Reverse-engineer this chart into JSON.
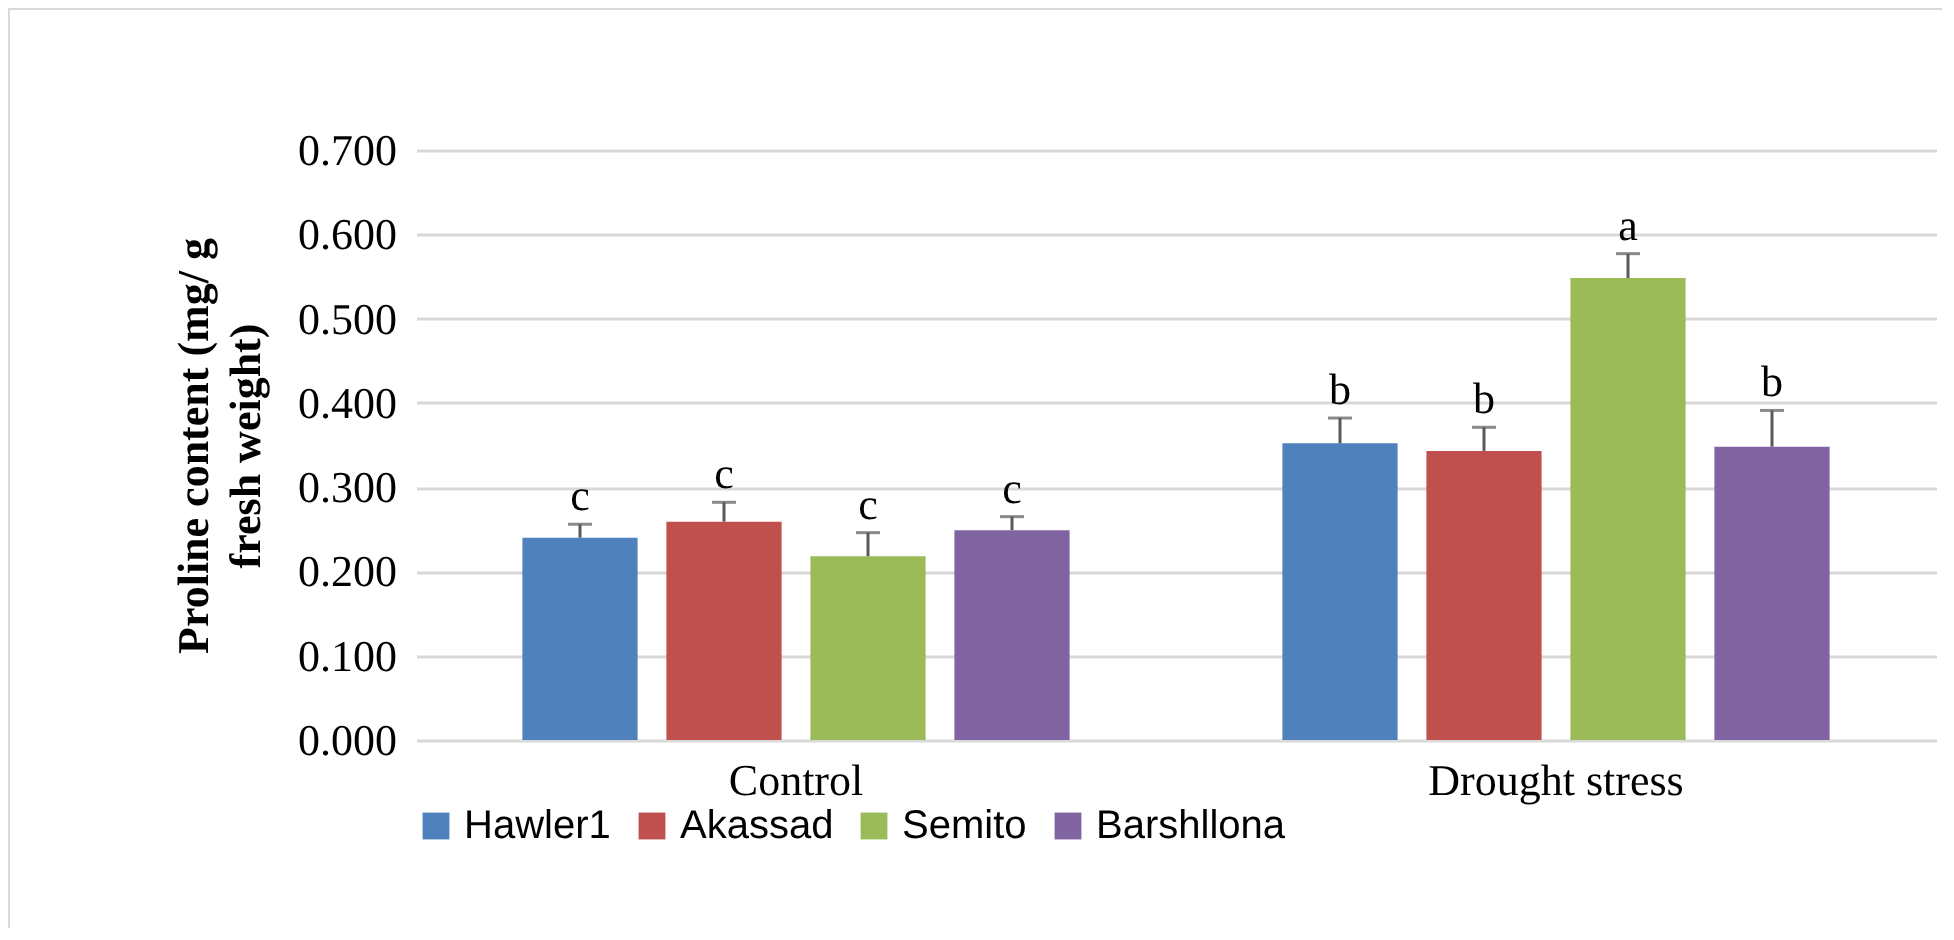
{
  "chart_data": {
    "type": "bar",
    "ylabel": "Proline content (mg/ g fresh weight)",
    "categories": [
      "Control",
      "Drought stress"
    ],
    "series": [
      {
        "name": "Hawler1",
        "color": "#4f81bd",
        "values": [
          0.24,
          0.352
        ],
        "errors": [
          [
            0.24,
            0.256
          ],
          [
            0.352,
            0.382
          ]
        ],
        "value_labels": [
          "c",
          "b"
        ]
      },
      {
        "name": "Akassad",
        "color": "#c0504d",
        "values": [
          0.259,
          0.343
        ],
        "errors": [
          [
            0.259,
            0.282
          ],
          [
            0.343,
            0.371
          ]
        ],
        "value_labels": [
          "c",
          "b"
        ]
      },
      {
        "name": "Semito",
        "color": "#9bbb59",
        "values": [
          0.218,
          0.548
        ],
        "errors": [
          [
            0.218,
            0.246
          ],
          [
            0.548,
            0.577
          ]
        ],
        "value_labels": [
          "c",
          "a"
        ]
      },
      {
        "name": "Barshllona",
        "color": "#8064a2",
        "values": [
          0.249,
          0.348
        ],
        "errors": [
          [
            0.249,
            0.265
          ],
          [
            0.348,
            0.391
          ]
        ],
        "value_labels": [
          "c",
          "b"
        ]
      }
    ],
    "ylim": [
      0,
      0.7
    ],
    "yticks": [
      {
        "value": 0,
        "label": "0.000"
      },
      {
        "value": 0.1,
        "label": "0.100"
      },
      {
        "value": 0.2,
        "label": "0.200"
      },
      {
        "value": 0.3,
        "label": "0.300"
      },
      {
        "value": 0.4,
        "label": "0.400"
      },
      {
        "value": 0.5,
        "label": "0.500"
      },
      {
        "value": 0.6,
        "label": "0.600"
      },
      {
        "value": 0.7,
        "label": "0.700"
      }
    ],
    "grid": "y",
    "legend": "bottom"
  }
}
